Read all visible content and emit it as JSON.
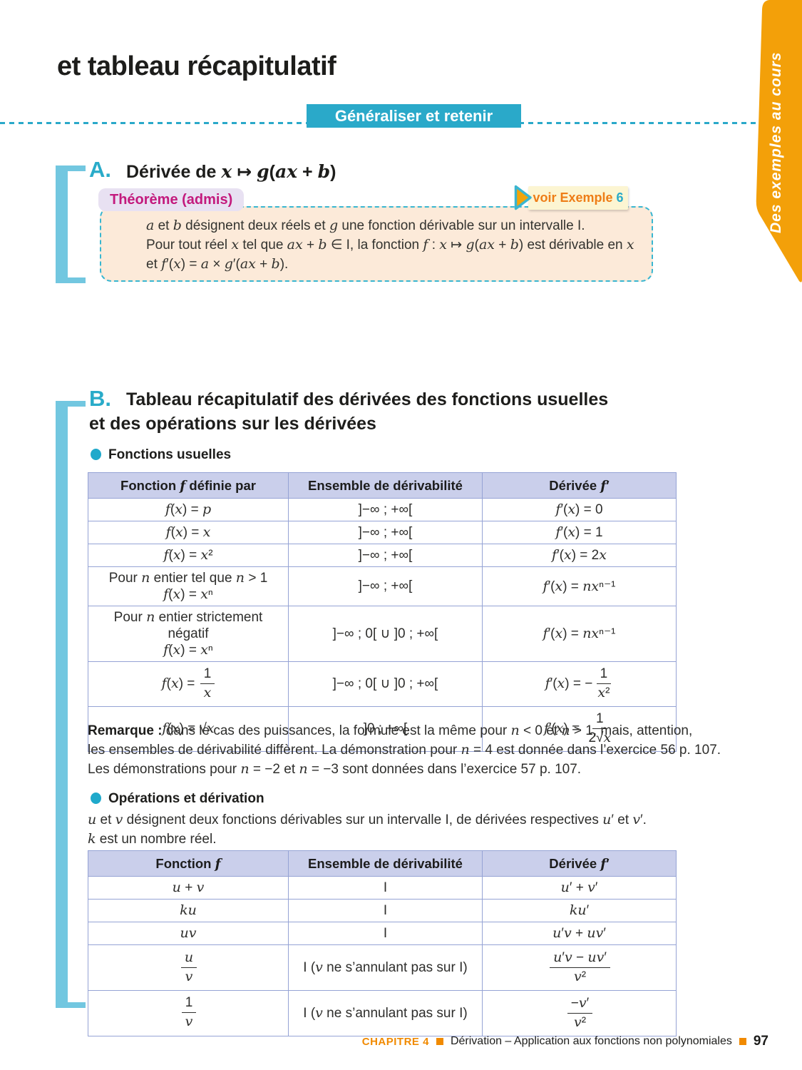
{
  "page": {
    "title": "et tableau récapitulatif",
    "banner": "Généraliser et retenir",
    "side_tab": "Des exemples au cours",
    "footer": {
      "chapter": "CHAPITRE 4",
      "title": "Dérivation – Application aux fonctions non polynomiales",
      "page_number": "97"
    }
  },
  "colors": {
    "teal": "#2aa9c9",
    "bracket_cyan": "#72c7e0",
    "ribbon_orange": "#f3a009",
    "magenta": "#c31a7d",
    "lavender": "#e8e1f2",
    "peach": "#fcead9",
    "peach_border": "#38b6d1",
    "table_header_bg": "#cacfeb",
    "table_border": "#95a3d5",
    "voir_bg": "#fcf5d2",
    "voir_orange": "#ee7d17",
    "footer_orange": "#f18a00"
  },
  "section_a": {
    "letter": "A.",
    "title": "Dérivée de *x* ↦ *g*(*ax* + *b*)",
    "theorem_label": "Théorème (admis)",
    "see_example": {
      "prefix": "voir Exemple",
      "number": "6"
    },
    "lines": [
      "*a* et *b* désignent deux réels et *g* une fonction dérivable sur un intervalle I.",
      "Pour tout réel *x* tel que *ax* + *b* ∈ I, la fonction *f* : *x* ↦ *g*(*ax* + *b*) est dérivable en *x*",
      "et *f*′(*x*) = *a* × *g*′(*ax* + *b*)."
    ]
  },
  "section_b": {
    "letter": "B.",
    "title_line1": "Tableau récapitulatif des dérivées des fonctions usuelles",
    "title_line2": "et des opérations sur les dérivées",
    "bullet1": "Fonctions usuelles",
    "bullet2": "Opérations et dérivation",
    "intro": [
      "*u* et *v* désignent deux fonctions dérivables sur un intervalle I, de dérivées respectives *u*′ et *v*′.",
      "*k* est un nombre réel."
    ],
    "remark": {
      "label": "Remarque :",
      "lines": [
        "dans le cas des puissances, la formule est la même pour *n* < 0 et *n* > 1, mais, attention,",
        "les ensembles de dérivabilité diffèrent. La démonstration pour *n* = 4 est donnée dans l’exercice 56 p. 107.",
        "Les démonstrations pour *n* = −2 et *n* = −3 sont données dans l’exercice 57 p. 107."
      ]
    }
  },
  "tables": {
    "usual": {
      "headers": [
        "Fonction *f* définie par",
        "Ensemble de dérivabilité",
        "Dérivée *f*′"
      ],
      "rows": [
        [
          "*f*(*x*) = *p*",
          "]−∞ ; +∞[",
          "*f*′(*x*) = 0"
        ],
        [
          "*f*(*x*) = *x*",
          "]−∞ ; +∞[",
          "*f*′(*x*) = 1"
        ],
        [
          "*f*(*x*) = *x*²",
          "]−∞ ; +∞[",
          "*f*′(*x*) = 2*x*"
        ],
        [
          {
            "lines": [
              "Pour *n* entier tel que *n* > 1",
              "*f*(*x*) = *x*ⁿ"
            ]
          },
          "]−∞ ; +∞[",
          "*f*′(*x*) = *nx*ⁿ⁻¹"
        ],
        [
          {
            "lines": [
              "Pour *n* entier strictement négatif",
              "*f*(*x*) = *x*ⁿ"
            ]
          },
          "]−∞ ; 0[ ∪ ]0 ; +∞[",
          "*f*′(*x*) = *nx*ⁿ⁻¹"
        ],
        [
          {
            "pre": "*f*(*x*) = ",
            "num": "1",
            "den": "*x*"
          },
          "]−∞ ; 0[ ∪ ]0 ; +∞[",
          {
            "pre": "*f*′(*x*) = −",
            "num": "1",
            "den": "*x*²"
          }
        ],
        [
          "*f*(*x*) = √*x*",
          "]0 ; +∞[",
          {
            "pre": "*f*′(*x*) = ",
            "num": "1",
            "den": "2√*x*"
          }
        ]
      ]
    },
    "operations": {
      "headers": [
        "Fonction *f*",
        "Ensemble de dérivabilité",
        "Dérivée *f*′"
      ],
      "rows": [
        [
          "*u* + *v*",
          "I",
          "*u*′ + *v*′"
        ],
        [
          "*ku*",
          "I",
          "*ku*′"
        ],
        [
          "*uv*",
          "I",
          "*u*′*v* + *uv*′"
        ],
        [
          {
            "num": "*u*",
            "den": "*v*"
          },
          "I (*v* ne s’annulant pas sur I)",
          {
            "num": "*u*′*v* − *uv*′",
            "den": "*v*²"
          }
        ],
        [
          {
            "num": "1",
            "den": "*v*"
          },
          "I (*v* ne s’annulant pas sur I)",
          {
            "num": "−*v*′",
            "den": "*v*²"
          }
        ]
      ]
    }
  }
}
